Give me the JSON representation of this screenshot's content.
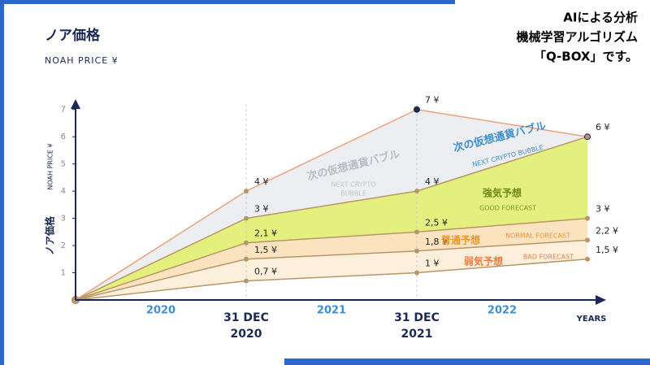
{
  "chart_data": {
    "type": "area",
    "title": "ノア価格",
    "subtitle": "NOAH PRICE ¥",
    "ylabel": "NOAH PRICE ¥",
    "ylabel_jp": "ノア価格",
    "note_lines": [
      "AIによる分析",
      "機械学習アルゴリズム",
      "「Q-BOX」です。"
    ],
    "categories": [
      null,
      "31 DEC 2020",
      "31 DEC 2021",
      null
    ],
    "period_labels": [
      "2020",
      "2021",
      "2022"
    ],
    "xlabel": "YEARS",
    "ylim": [
      0,
      7.5
    ],
    "yticks": [
      1,
      2,
      3,
      4,
      5,
      6,
      7
    ],
    "line_color": "#b8966a",
    "series": [
      {
        "color": "#eceef1",
        "line": "#eaa27f",
        "values": [
          0,
          4,
          7,
          6
        ],
        "value_labels": [
          null,
          "4 ¥",
          "7 ¥",
          "6 ¥"
        ]
      },
      {
        "color": "#e4f07e",
        "values": [
          0,
          3,
          4,
          6
        ],
        "value_labels": [
          null,
          "3 ¥",
          "4 ¥",
          null
        ]
      },
      {
        "color": "#fbe3bf",
        "values": [
          0,
          2.1,
          2.5,
          3
        ],
        "value_labels": [
          null,
          "2,1 ¥",
          "2,5 ¥",
          "3 ¥"
        ]
      },
      {
        "color": "#fcefdc",
        "values": [
          0,
          1.5,
          1.8,
          2.2
        ],
        "value_labels": [
          null,
          "1,5 ¥",
          "1,8 ¥",
          "2,2 ¥"
        ]
      },
      {
        "color": "#ffffff",
        "values": [
          0,
          0.7,
          1,
          1.5
        ],
        "value_labels": [
          null,
          "0,7 ¥",
          "1 ¥",
          "1,5 ¥"
        ]
      }
    ],
    "annotations": [
      {
        "text": "次の仮想通貨バブル",
        "color": "#b9bcc2"
      },
      {
        "text": "NEXT CRYPTO",
        "color": "#c3c6cb"
      },
      {
        "text": "BUBBLE",
        "color": "#c3c6cb"
      },
      {
        "text": "次の仮想通貨バブル",
        "color": "#3f8fd2"
      },
      {
        "text": "NEXT CRYPTO BUBBLE",
        "color": "#3f8fd2"
      },
      {
        "text": "強気予想",
        "color": "#6d8a12"
      },
      {
        "text": "GOOD FORECAST",
        "color": "#7d9a1c"
      },
      {
        "text": "普通予想",
        "color": "#e8962f"
      },
      {
        "text": "NORMAL FORECAST",
        "color": "#e8962f"
      },
      {
        "text": "弱気予想",
        "color": "#e57f45"
      },
      {
        "text": "BAD FORECAST",
        "color": "#e57f45"
      }
    ]
  }
}
